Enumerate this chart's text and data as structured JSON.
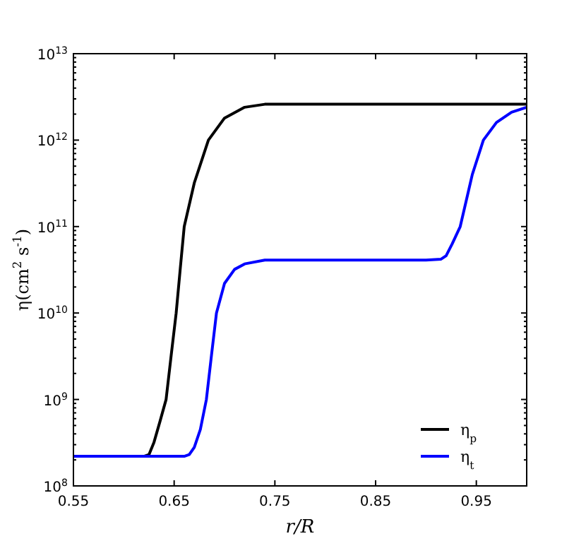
{
  "chart_data": {
    "type": "line",
    "xlabel": "r/R",
    "ylabel": "η(cm$^{2}$ s$^{-1}$)",
    "log": "y",
    "xlim": [
      0.55,
      1.0
    ],
    "xticks": [
      0.55,
      0.65,
      0.75,
      0.85,
      0.95
    ],
    "ylim": [
      100000000.0,
      10000000000000.0
    ],
    "yticks": [
      {
        "value": 100000000.0,
        "label": "10$^{8}$"
      },
      {
        "value": 1000000000.0,
        "label": "10$^{9}$"
      },
      {
        "value": 10000000000.0,
        "label": "10$^{10}$"
      },
      {
        "value": 100000000000.0,
        "label": "10$^{11}$"
      },
      {
        "value": 1000000000000.0,
        "label": "10$^{12}$"
      },
      {
        "value": 10000000000000.0,
        "label": "10$^{13}$"
      },
      {
        "value": 200000000.0,
        "label": null
      },
      {
        "value": 300000000.0,
        "label": null
      },
      {
        "value": 400000000.0,
        "label": null
      },
      {
        "value": 500000000.0,
        "label": null
      },
      {
        "value": 600000000.0,
        "label": null
      },
      {
        "value": 700000000.0,
        "label": null
      },
      {
        "value": 800000000.0,
        "label": null
      },
      {
        "value": 900000000.0,
        "label": null
      },
      {
        "value": 2000000000.0,
        "label": null
      },
      {
        "value": 3000000000.0,
        "label": null
      },
      {
        "value": 4000000000.0,
        "label": null
      },
      {
        "value": 5000000000.0,
        "label": null
      },
      {
        "value": 6000000000.0,
        "label": null
      },
      {
        "value": 7000000000.0,
        "label": null
      },
      {
        "value": 8000000000.0,
        "label": null
      },
      {
        "value": 9000000000.0,
        "label": null
      },
      {
        "value": 20000000000.0,
        "label": null
      },
      {
        "value": 30000000000.0,
        "label": null
      },
      {
        "value": 40000000000.0,
        "label": null
      },
      {
        "value": 50000000000.0,
        "label": null
      },
      {
        "value": 60000000000.0,
        "label": null
      },
      {
        "value": 70000000000.0,
        "label": null
      },
      {
        "value": 80000000000.0,
        "label": null
      },
      {
        "value": 90000000000.0,
        "label": null
      },
      {
        "value": 200000000000.0,
        "label": null
      },
      {
        "value": 300000000000.0,
        "label": null
      },
      {
        "value": 400000000000.0,
        "label": null
      },
      {
        "value": 500000000000.0,
        "label": null
      },
      {
        "value": 600000000000.0,
        "label": null
      },
      {
        "value": 700000000000.0,
        "label": null
      },
      {
        "value": 800000000000.0,
        "label": null
      },
      {
        "value": 900000000000.0,
        "label": null
      },
      {
        "value": 2000000000000.0,
        "label": null
      },
      {
        "value": 3000000000000.0,
        "label": null
      },
      {
        "value": 4000000000000.0,
        "label": null
      },
      {
        "value": 5000000000000.0,
        "label": null
      },
      {
        "value": 6000000000000.0,
        "label": null
      },
      {
        "value": 7000000000000.0,
        "label": null
      },
      {
        "value": 8000000000000.0,
        "label": null
      },
      {
        "value": 9000000000000.0,
        "label": null
      }
    ],
    "grid": false,
    "legend": "bottom right",
    "marker": "none",
    "line_style": "solid",
    "series": [
      {
        "name": "η$_{p}$",
        "color": "#000000",
        "x": [
          0.55,
          0.62,
          0.625,
          0.63,
          0.636,
          0.642,
          0.647,
          0.652,
          0.656,
          0.66,
          0.67,
          0.684,
          0.7,
          0.72,
          0.74,
          1.0
        ],
        "values": [
          220000000.0,
          220000000.0,
          230000000.0,
          320000000.0,
          560000000.0,
          1000000000.0,
          3200000000.0,
          10000000000.0,
          32000000000.0,
          100000000000.0,
          320000000000.0,
          1000000000000.0,
          1800000000000.0,
          2400000000000.0,
          2600000000000.0,
          2600000000000.0
        ]
      },
      {
        "name": "η$_{t}$",
        "color": "#0000ff",
        "x": [
          0.55,
          0.66,
          0.665,
          0.67,
          0.676,
          0.682,
          0.687,
          0.692,
          0.7,
          0.71,
          0.72,
          0.74,
          0.9,
          0.915,
          0.92,
          0.926,
          0.934,
          0.94,
          0.946,
          0.957,
          0.97,
          0.985,
          1.0
        ],
        "values": [
          220000000.0,
          220000000.0,
          230000000.0,
          280000000.0,
          450000000.0,
          1000000000.0,
          3200000000.0,
          10000000000.0,
          22000000000.0,
          32000000000.0,
          37000000000.0,
          41000000000.0,
          41000000000.0,
          42000000000.0,
          46000000000.0,
          63000000000.0,
          100000000000.0,
          200000000000.0,
          400000000000.0,
          1000000000000.0,
          1600000000000.0,
          2100000000000.0,
          2400000000000.0
        ]
      }
    ]
  }
}
